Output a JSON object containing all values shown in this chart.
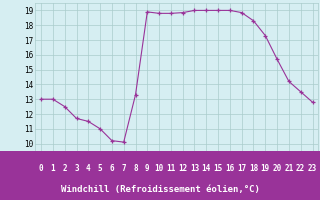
{
  "x": [
    0,
    1,
    2,
    3,
    4,
    5,
    6,
    7,
    8,
    9,
    10,
    11,
    12,
    13,
    14,
    15,
    16,
    17,
    18,
    19,
    20,
    21,
    22,
    23
  ],
  "y": [
    13,
    13,
    12.5,
    11.7,
    11.5,
    11.0,
    10.2,
    10.1,
    13.3,
    18.9,
    18.8,
    18.8,
    18.85,
    19.0,
    19.0,
    19.0,
    19.0,
    18.85,
    18.3,
    17.3,
    15.7,
    14.2,
    13.5,
    12.8
  ],
  "line_color": "#993399",
  "marker": "+",
  "marker_size": 3,
  "bg_color": "#d6eef2",
  "grid_color": "#aacccc",
  "xlabel": "Windchill (Refroidissement éolien,°C)",
  "xlabel_bg": "#993399",
  "xlabel_text_color": "#ffffff",
  "ylabel_ticks": [
    10,
    11,
    12,
    13,
    14,
    15,
    16,
    17,
    18,
    19
  ],
  "xtick_labels": [
    "0",
    "1",
    "2",
    "3",
    "4",
    "5",
    "6",
    "7",
    "8",
    "9",
    "10",
    "11",
    "12",
    "13",
    "14",
    "15",
    "16",
    "17",
    "18",
    "19",
    "20",
    "21",
    "22",
    "23"
  ],
  "xlim": [
    -0.5,
    23.5
  ],
  "ylim": [
    9.5,
    19.5
  ],
  "tick_fontsize": 5.5,
  "label_fontsize": 6.5
}
